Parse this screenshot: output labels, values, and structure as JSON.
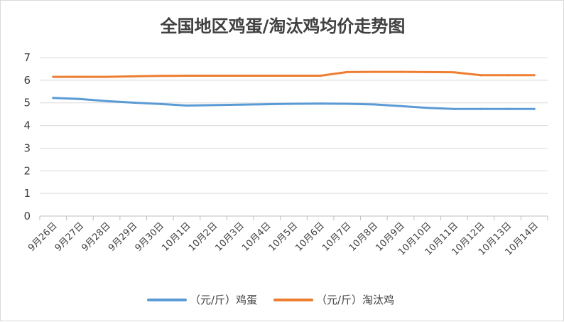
{
  "chart_data": {
    "type": "line",
    "title": "全国地区鸡蛋/淘汰鸡均价走势图",
    "xlabel": "",
    "ylabel": "",
    "categories": [
      "9月26日",
      "9月27日",
      "9月28日",
      "9月29日",
      "9月30日",
      "10月1日",
      "10月2日",
      "10月3日",
      "10月4日",
      "10月5日",
      "10月6日",
      "10月7日",
      "10月8日",
      "10月9日",
      "10月10日",
      "10月11日",
      "10月12日",
      "10月13日",
      "10月14日"
    ],
    "ylim": [
      0,
      7
    ],
    "yticks": [
      0,
      1,
      2,
      3,
      4,
      5,
      6,
      7
    ],
    "grid": "horizontal",
    "legend_position": "bottom",
    "series": [
      {
        "name": "（元/斤）鸡蛋",
        "color": "#5b9bd5",
        "values": [
          5.22,
          5.17,
          5.08,
          5.01,
          4.95,
          4.88,
          4.9,
          4.92,
          4.94,
          4.96,
          4.97,
          4.96,
          4.93,
          4.86,
          4.78,
          4.73,
          4.73,
          4.73,
          4.73
        ]
      },
      {
        "name": "（元/斤）淘汰鸡",
        "color": "#ed7d31",
        "values": [
          6.15,
          6.15,
          6.15,
          6.17,
          6.19,
          6.2,
          6.2,
          6.2,
          6.2,
          6.2,
          6.2,
          6.36,
          6.37,
          6.37,
          6.36,
          6.35,
          6.22,
          6.22,
          6.22
        ]
      }
    ]
  }
}
